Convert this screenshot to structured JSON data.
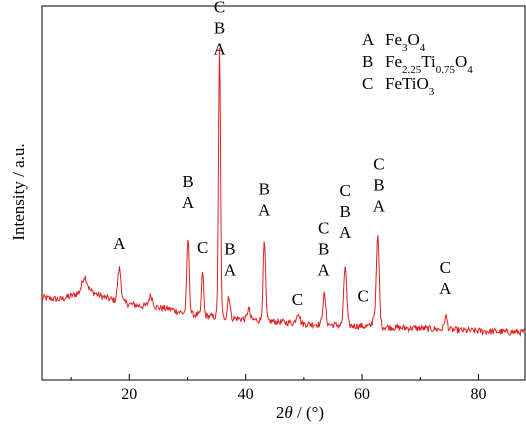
{
  "chart_data": {
    "type": "line",
    "title": "",
    "xlabel": "2θ / (°)",
    "ylabel": "Intensity / a.u.",
    "xlim": [
      5,
      88
    ],
    "ylim": [
      0,
      100
    ],
    "x_ticks": [
      20,
      40,
      60,
      80
    ],
    "x_tick_labels": [
      "20",
      "40",
      "60",
      "80"
    ],
    "y_ticks_shown": false,
    "grid": false,
    "line_color": "#e02020",
    "series": [
      {
        "baseline": [
          [
            5,
            22.0
          ],
          [
            8,
            21.5
          ],
          [
            11,
            23.0
          ],
          [
            13,
            24.0
          ],
          [
            15,
            22.5
          ],
          [
            18,
            21.0
          ],
          [
            21,
            20.0
          ],
          [
            24,
            19.5
          ],
          [
            27,
            19.0
          ],
          [
            29,
            18.0
          ],
          [
            31,
            17.5
          ],
          [
            34,
            17.0
          ],
          [
            38,
            16.5
          ],
          [
            42,
            16.0
          ],
          [
            46,
            15.5
          ],
          [
            50,
            15.0
          ],
          [
            54,
            14.8
          ],
          [
            58,
            14.5
          ],
          [
            62,
            14.3
          ],
          [
            66,
            14.0
          ],
          [
            70,
            13.8
          ],
          [
            74,
            13.5
          ],
          [
            78,
            13.2
          ],
          [
            82,
            13.0
          ],
          [
            85,
            12.8
          ],
          [
            88,
            12.8
          ]
        ],
        "peaks": [
          {
            "x": 12.3,
            "height": 4,
            "width": 0.6
          },
          {
            "x": 18.3,
            "height": 9,
            "width": 0.4
          },
          {
            "x": 23.7,
            "height": 3,
            "width": 0.5
          },
          {
            "x": 30.1,
            "height": 20,
            "width": 0.3
          },
          {
            "x": 32.6,
            "height": 12,
            "width": 0.25
          },
          {
            "x": 35.5,
            "height": 72,
            "width": 0.25
          },
          {
            "x": 37.1,
            "height": 6,
            "width": 0.3
          },
          {
            "x": 40.5,
            "height": 3,
            "width": 0.3
          },
          {
            "x": 43.2,
            "height": 21,
            "width": 0.3
          },
          {
            "x": 49.0,
            "height": 3,
            "width": 0.4
          },
          {
            "x": 53.5,
            "height": 8,
            "width": 0.35
          },
          {
            "x": 57.1,
            "height": 16,
            "width": 0.35
          },
          {
            "x": 62.0,
            "height": 2.5,
            "width": 0.3
          },
          {
            "x": 62.7,
            "height": 24,
            "width": 0.35
          },
          {
            "x": 74.4,
            "height": 3.5,
            "width": 0.35
          }
        ]
      }
    ],
    "annotations": [
      {
        "x": 18.3,
        "y": 35,
        "lines": [
          "A"
        ]
      },
      {
        "x": 30.1,
        "y": 46,
        "lines": [
          "B",
          "A"
        ]
      },
      {
        "x": 32.6,
        "y": 34,
        "lines": [
          "C"
        ]
      },
      {
        "x": 35.5,
        "y": 87,
        "lines": [
          "C",
          "B",
          "A"
        ]
      },
      {
        "x": 37.3,
        "y": 28,
        "lines": [
          "B",
          "A"
        ]
      },
      {
        "x": 43.2,
        "y": 44,
        "lines": [
          "B",
          "A"
        ]
      },
      {
        "x": 48.9,
        "y": 20,
        "lines": [
          "C"
        ]
      },
      {
        "x": 53.4,
        "y": 28,
        "lines": [
          "C",
          "B",
          "A"
        ]
      },
      {
        "x": 57.1,
        "y": 38,
        "lines": [
          "C",
          "B",
          "A"
        ]
      },
      {
        "x": 60.2,
        "y": 21,
        "lines": [
          "C"
        ]
      },
      {
        "x": 62.9,
        "y": 45,
        "lines": [
          "C",
          "B",
          "A"
        ]
      },
      {
        "x": 74.3,
        "y": 23,
        "lines": [
          "C",
          "A"
        ]
      }
    ],
    "legend": {
      "placement": "top-right",
      "entries": [
        {
          "key": "A",
          "label": "Fe3O4",
          "parts": [
            {
              "t": "Fe"
            },
            {
              "t": "3",
              "sub": true
            },
            {
              "t": "O"
            },
            {
              "t": "4",
              "sub": true
            }
          ]
        },
        {
          "key": "B",
          "label": "Fe2.25Ti0.75O4",
          "parts": [
            {
              "t": "Fe"
            },
            {
              "t": "2.25",
              "sub": true
            },
            {
              "t": "Ti"
            },
            {
              "t": "0.75",
              "sub": true
            },
            {
              "t": "O"
            },
            {
              "t": "4",
              "sub": true
            }
          ]
        },
        {
          "key": "C",
          "label": "FeTiO3",
          "parts": [
            {
              "t": "FeTiO"
            },
            {
              "t": "3",
              "sub": true
            }
          ]
        }
      ]
    }
  }
}
